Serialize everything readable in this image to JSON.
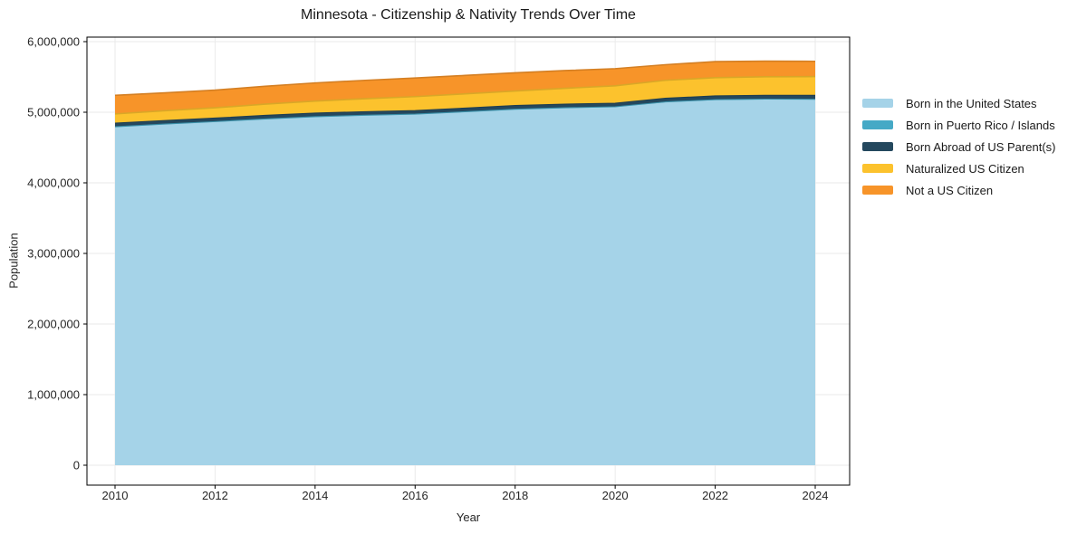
{
  "title": "Minnesota - Citizenship & Nativity Trends Over Time",
  "xlabel": "Year",
  "ylabel": "Population",
  "chart_data": {
    "type": "area",
    "stacked": true,
    "title": "Minnesota - Citizenship & Nativity Trends Over Time",
    "xlabel": "Year",
    "ylabel": "Population",
    "x": [
      2010,
      2011,
      2012,
      2013,
      2014,
      2015,
      2016,
      2017,
      2018,
      2019,
      2020,
      2021,
      2022,
      2023,
      2024
    ],
    "series": [
      {
        "name": "Born in the United States",
        "color": "#a5d3e8",
        "values": [
          4790000,
          4828000,
          4862000,
          4900000,
          4932000,
          4952000,
          4968000,
          5002000,
          5038000,
          5058000,
          5072000,
          5140000,
          5172000,
          5180000,
          5178000
        ]
      },
      {
        "name": "Born in Puerto Rico / Islands",
        "color": "#45a9c6",
        "values": [
          4000,
          4000,
          5000,
          5000,
          5000,
          5000,
          5000,
          5000,
          5000,
          5000,
          5000,
          6000,
          6000,
          6000,
          6000
        ]
      },
      {
        "name": "Born Abroad of US Parent(s)",
        "color": "#24485e",
        "values": [
          52000,
          51000,
          50000,
          51000,
          51000,
          51000,
          51000,
          52000,
          52000,
          52000,
          51000,
          52000,
          53000,
          54000,
          55000
        ]
      },
      {
        "name": "Naturalized US Citizen",
        "color": "#fcc22d",
        "values": [
          130000,
          138000,
          146000,
          158000,
          170000,
          184000,
          197000,
          201000,
          206000,
          224000,
          246000,
          254000,
          258000,
          262000,
          266000
        ]
      },
      {
        "name": "Not a US Citizen",
        "color": "#f79429",
        "values": [
          263000,
          254000,
          250000,
          254000,
          257000,
          260000,
          264000,
          261000,
          257000,
          251000,
          243000,
          221000,
          228000,
          222000,
          216000
        ]
      }
    ],
    "xlim": [
      2010,
      2024
    ],
    "ylim": [
      0,
      6000000
    ],
    "grid": true,
    "grid_color": "#eaeaea",
    "spine_color": "#000000",
    "tick_label_color": "#262626",
    "legend_position": "right-of-plot",
    "xticks_values": [
      2010,
      2012,
      2014,
      2016,
      2018,
      2020,
      2022,
      2024
    ],
    "xticks_labels": [
      "2010",
      "2012",
      "2014",
      "2016",
      "2018",
      "2020",
      "2022",
      "2024"
    ],
    "yticks_values": [
      0,
      1000000,
      2000000,
      3000000,
      4000000,
      5000000,
      6000000
    ],
    "yticks_labels": [
      "0",
      "1,000,000",
      "2,000,000",
      "3,000,000",
      "4,000,000",
      "5,000,000",
      "6,000,000"
    ]
  }
}
